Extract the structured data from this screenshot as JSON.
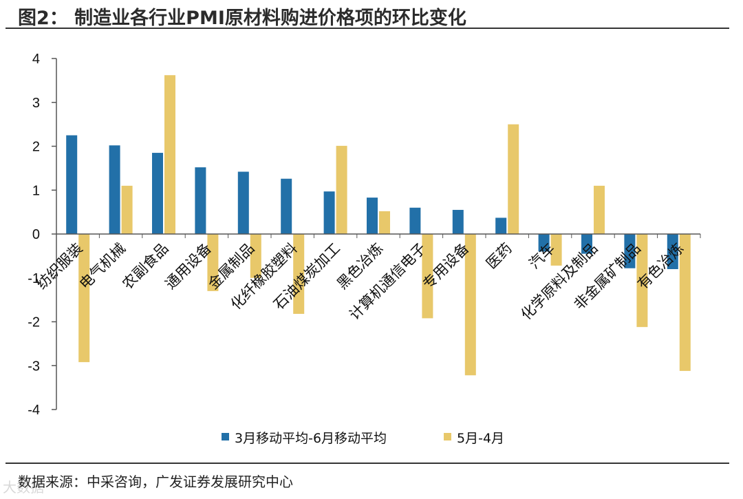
{
  "title": "图2：  制造业各行业PMI原材料购进价格项的环比变化",
  "source": "数据来源：中采咨询，广发证券发展研究中心",
  "watermark": "大数据",
  "colors": {
    "series1": "#2270a8",
    "series2": "#e8c86a",
    "axis": "#555555"
  },
  "chart_data": {
    "type": "bar",
    "title": "制造业各行业PMI原材料购进价格项的环比变化",
    "ylim": [
      -4,
      4
    ],
    "yticks": [
      4,
      3,
      2,
      1,
      0,
      -1,
      -2,
      -3,
      -4
    ],
    "categories": [
      "纺织服装",
      "电气机械",
      "农副食品",
      "通用设备",
      "金属制品",
      "化纤橡胶塑料",
      "石油煤炭加工",
      "黑色冶炼",
      "计算机通信电子",
      "专用设备",
      "医药",
      "汽车",
      "化学原料及制品",
      "非金属矿制品",
      "有色冶炼"
    ],
    "series": [
      {
        "name": "3月移动平均-6月移动平均",
        "values": [
          2.25,
          2.02,
          1.85,
          1.52,
          1.42,
          1.26,
          0.97,
          0.83,
          0.6,
          0.55,
          0.37,
          -0.4,
          -0.45,
          -0.78,
          -0.8
        ]
      },
      {
        "name": "5月-4月",
        "values": [
          -2.92,
          1.1,
          3.62,
          -1.3,
          -1.0,
          -1.82,
          2.01,
          0.52,
          -1.92,
          -3.22,
          2.5,
          -0.72,
          1.1,
          -2.12,
          -3.12
        ]
      }
    ],
    "legend": "bottom"
  }
}
